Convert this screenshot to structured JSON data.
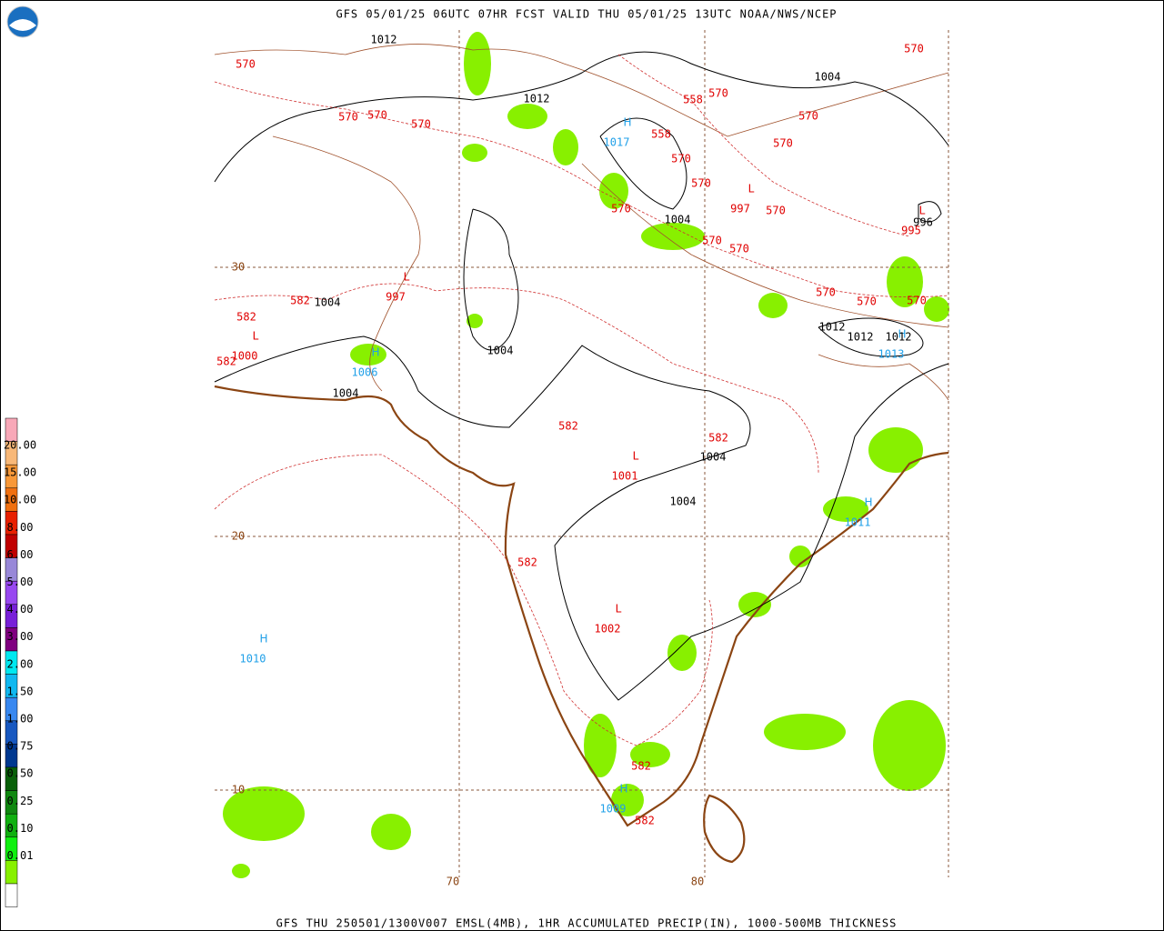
{
  "header": {
    "title": "GFS 05/01/25 06UTC 07HR FCST VALID THU 05/01/25 13UTC NOAA/NWS/NCEP"
  },
  "footer": {
    "caption": "GFS THU 250501/1300V007 EMSL(4MB), 1HR ACCUMULATED PRECIP(IN), 1000-500MB THICKNESS"
  },
  "legend": {
    "labels": [
      "20.00",
      "15.00",
      "10.00",
      "8.00",
      "6.00",
      "5.00",
      "4.00",
      "3.00",
      "2.00",
      "1.50",
      "1.00",
      "0.75",
      "0.50",
      "0.25",
      "0.10",
      "0.01"
    ],
    "colors": [
      "#f8a8b8",
      "#f8b878",
      "#f89838",
      "#f07010",
      "#e82000",
      "#c00000",
      "#9888d8",
      "#9848f0",
      "#7820d8",
      "#800080",
      "#00e8f0",
      "#10b8f0",
      "#3888f0",
      "#1858c0",
      "#003890",
      "#086008",
      "#108810",
      "#10b010",
      "#10f010",
      "#88f000",
      "#ffffff"
    ]
  },
  "grid": {
    "lat_labels": [
      "30",
      "20",
      "10"
    ],
    "lon_labels": [
      "70",
      "80"
    ]
  },
  "pressure_centers": [
    {
      "symbol": "H",
      "value": "1017"
    },
    {
      "symbol": "L",
      "value": "997"
    },
    {
      "symbol": "L",
      "value": "995"
    },
    {
      "symbol": "L",
      "value": "997"
    },
    {
      "symbol": "L",
      "value": "1000"
    },
    {
      "symbol": "H",
      "value": "1006"
    },
    {
      "symbol": "H",
      "value": "1013"
    },
    {
      "symbol": "L",
      "value": "1001"
    },
    {
      "symbol": "H",
      "value": "1011"
    },
    {
      "symbol": "L",
      "value": "1002"
    },
    {
      "symbol": "H",
      "value": "1010"
    },
    {
      "symbol": "H",
      "value": "1009"
    }
  ],
  "thickness_labels": [
    "570",
    "570",
    "570",
    "570",
    "558",
    "558",
    "570",
    "570",
    "570",
    "570",
    "570",
    "570",
    "570",
    "570",
    "570",
    "570",
    "570",
    "570",
    "570",
    "582",
    "582",
    "582",
    "582",
    "582",
    "582",
    "582",
    "582"
  ],
  "isobar_labels": [
    "1012",
    "1012",
    "1012",
    "1012",
    "1012",
    "1004",
    "1004",
    "1004",
    "1004",
    "1004",
    "1004",
    "1004",
    "996"
  ]
}
